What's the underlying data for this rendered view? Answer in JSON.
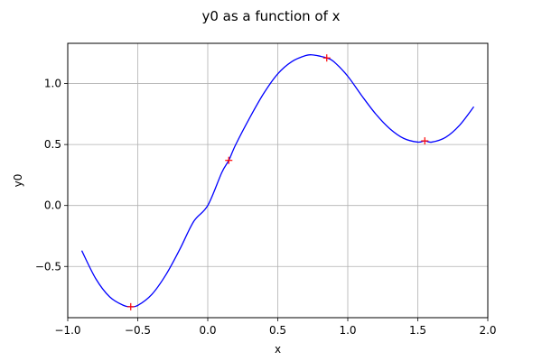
{
  "chart_data": {
    "type": "line",
    "title": "y0 as a function of x",
    "xlabel": "x",
    "ylabel": "y0",
    "xlim": [
      -1.0,
      2.0
    ],
    "ylim": [
      -0.92,
      1.33
    ],
    "xticks": [
      -1.0,
      -0.5,
      0.0,
      0.5,
      1.0,
      1.5,
      2.0
    ],
    "xtick_labels": [
      "−1.0",
      "−0.5",
      "0.0",
      "0.5",
      "1.0",
      "1.5",
      "2.0"
    ],
    "yticks": [
      -0.5,
      0.0,
      0.5,
      1.0
    ],
    "ytick_labels": [
      "−0.5",
      "0.0",
      "0.5",
      "1.0"
    ],
    "grid": true,
    "colors": {
      "line": "#0000ff",
      "markers": "#ff0000",
      "grid": "#b0b0b0"
    },
    "series": [
      {
        "style": "line",
        "x": [
          -0.9,
          -0.8,
          -0.7,
          -0.6,
          -0.55,
          -0.5,
          -0.4,
          -0.3,
          -0.2,
          -0.1,
          0.0,
          0.1,
          0.15,
          0.2,
          0.3,
          0.4,
          0.5,
          0.6,
          0.7,
          0.75,
          0.8,
          0.85,
          0.9,
          1.0,
          1.1,
          1.2,
          1.3,
          1.4,
          1.5,
          1.55,
          1.6,
          1.7,
          1.8,
          1.9
        ],
        "y": [
          -0.37,
          -0.6,
          -0.75,
          -0.82,
          -0.83,
          -0.82,
          -0.73,
          -0.57,
          -0.36,
          -0.13,
          0.0,
          0.27,
          0.37,
          0.5,
          0.72,
          0.92,
          1.08,
          1.18,
          1.23,
          1.235,
          1.225,
          1.21,
          1.18,
          1.06,
          0.9,
          0.75,
          0.63,
          0.55,
          0.52,
          0.53,
          0.52,
          0.56,
          0.66,
          0.81
        ]
      },
      {
        "style": "markers",
        "x": [
          -0.55,
          0.15,
          0.85,
          1.55
        ],
        "y": [
          -0.83,
          0.37,
          1.21,
          0.53
        ]
      }
    ]
  }
}
